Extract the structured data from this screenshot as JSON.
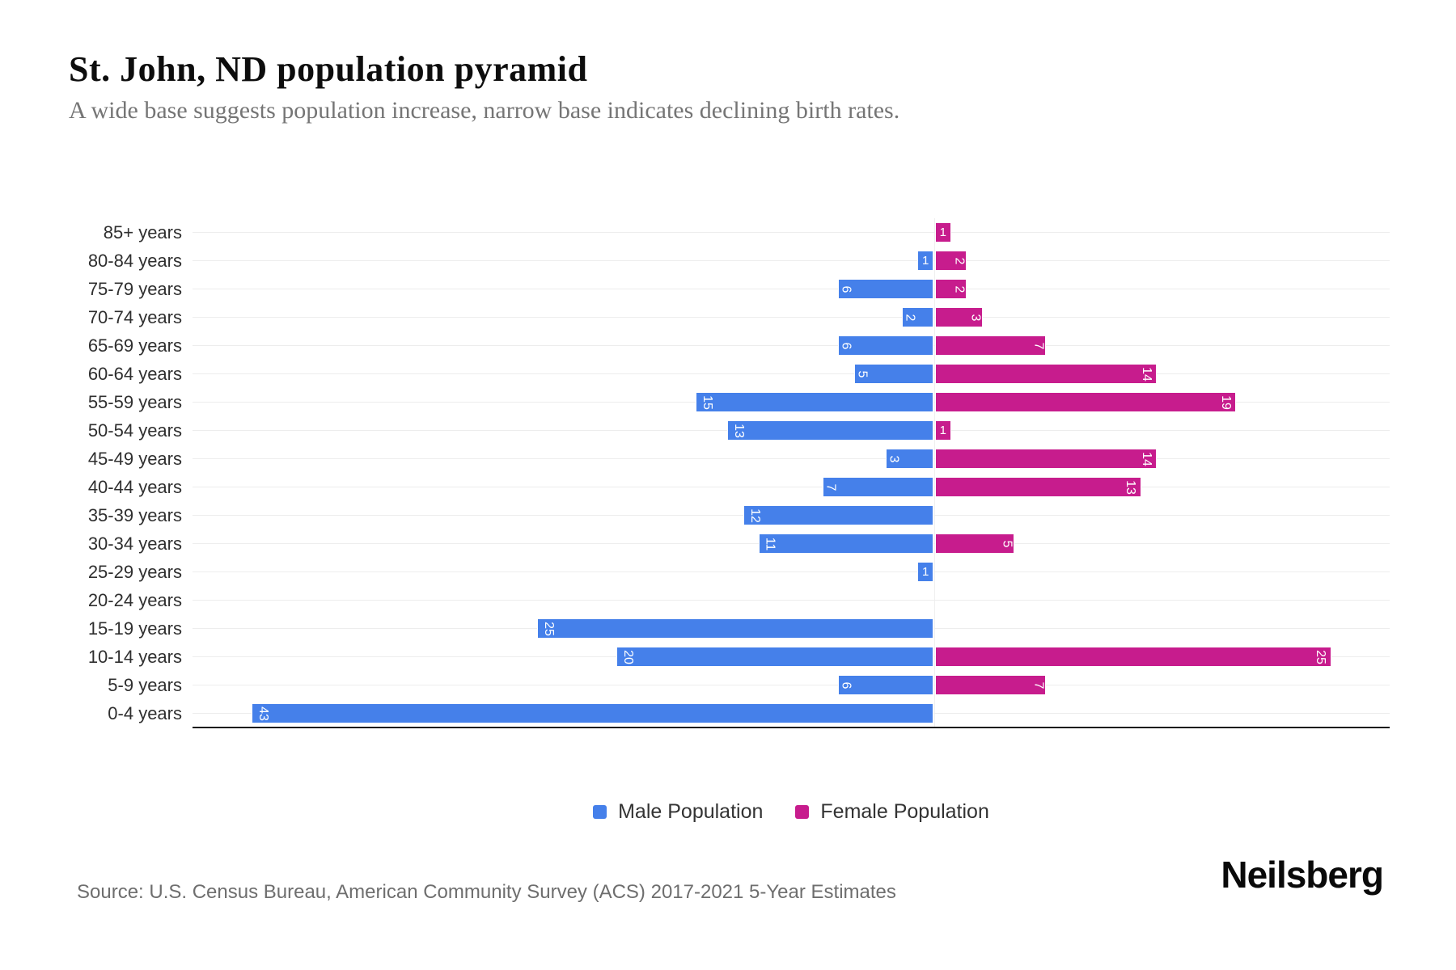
{
  "header": {
    "title": "St. John, ND population pyramid",
    "subtitle": "A wide base suggests population increase, narrow base indicates declining birth rates."
  },
  "chart_data": {
    "type": "bar",
    "variant": "population-pyramid",
    "orientation": "horizontal",
    "categories": [
      "85+ years",
      "80-84 years",
      "75-79 years",
      "70-74 years",
      "65-69 years",
      "60-64 years",
      "55-59 years",
      "50-54 years",
      "45-49 years",
      "40-44 years",
      "35-39 years",
      "30-34 years",
      "25-29 years",
      "20-24 years",
      "15-19 years",
      "10-14 years",
      "5-9 years",
      "0-4 years"
    ],
    "series": [
      {
        "name": "Male Population",
        "side": "left",
        "color": "#4580ea",
        "values": [
          0,
          1,
          6,
          2,
          6,
          5,
          15,
          13,
          3,
          7,
          12,
          11,
          1,
          0,
          25,
          20,
          6,
          43
        ]
      },
      {
        "name": "Female Population",
        "side": "right",
        "color": "#c71c8d",
        "values": [
          1,
          2,
          2,
          3,
          7,
          14,
          19,
          1,
          14,
          13,
          0,
          5,
          0,
          0,
          0,
          25,
          7,
          0
        ]
      }
    ],
    "value_labels": "shown at outer end of each bar, white, rotated 90deg (value 1 shown upright)",
    "grid": "horizontal-light",
    "axis_line": "bottom",
    "legend_position": "bottom-center"
  },
  "legend": {
    "items": [
      {
        "label": "Male Population",
        "color": "#4580ea"
      },
      {
        "label": "Female Population",
        "color": "#c71c8d"
      }
    ]
  },
  "footer": {
    "source": "Source: U.S. Census Bureau, American Community Survey (ACS) 2017-2021 5-Year Estimates",
    "brand": "Neilsberg"
  }
}
